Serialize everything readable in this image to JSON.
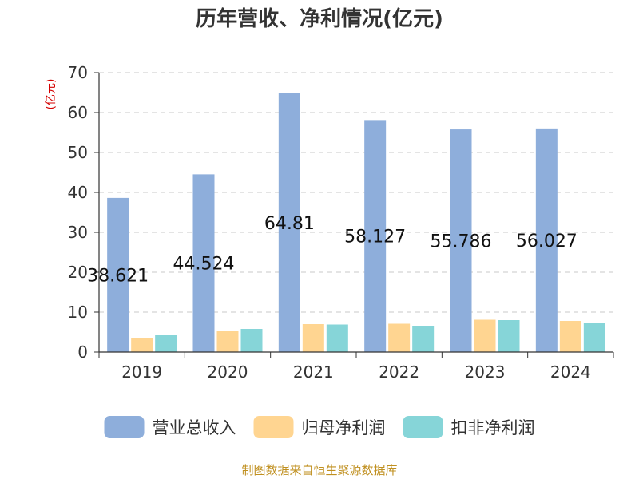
{
  "chart_data": {
    "type": "bar",
    "title": "历年营收、净利情况(亿元)",
    "ylabel": "(亿元)",
    "xlabel": "",
    "ylim": [
      0,
      70
    ],
    "yticks": [
      0,
      10,
      20,
      30,
      40,
      50,
      60,
      70
    ],
    "grid": true,
    "legend_position": "bottom",
    "categories": [
      "2019",
      "2020",
      "2021",
      "2022",
      "2023",
      "2024"
    ],
    "series": [
      {
        "name": "营业总收入",
        "color": "#8eaedb",
        "values": [
          38.621,
          44.524,
          64.81,
          58.127,
          55.786,
          56.027
        ],
        "labels": [
          "38.621",
          "44.524",
          "64.81",
          "58.127",
          "55.786",
          "56.027"
        ]
      },
      {
        "name": "归母净利润",
        "color": "#ffd591",
        "values": [
          3.4,
          5.4,
          7.0,
          7.1,
          8.1,
          7.8
        ]
      },
      {
        "name": "扣非净利润",
        "color": "#86d5d8",
        "values": [
          4.4,
          5.8,
          6.9,
          6.6,
          8.0,
          7.3
        ]
      }
    ]
  },
  "source_note": "制图数据来自恒生聚源数据库"
}
